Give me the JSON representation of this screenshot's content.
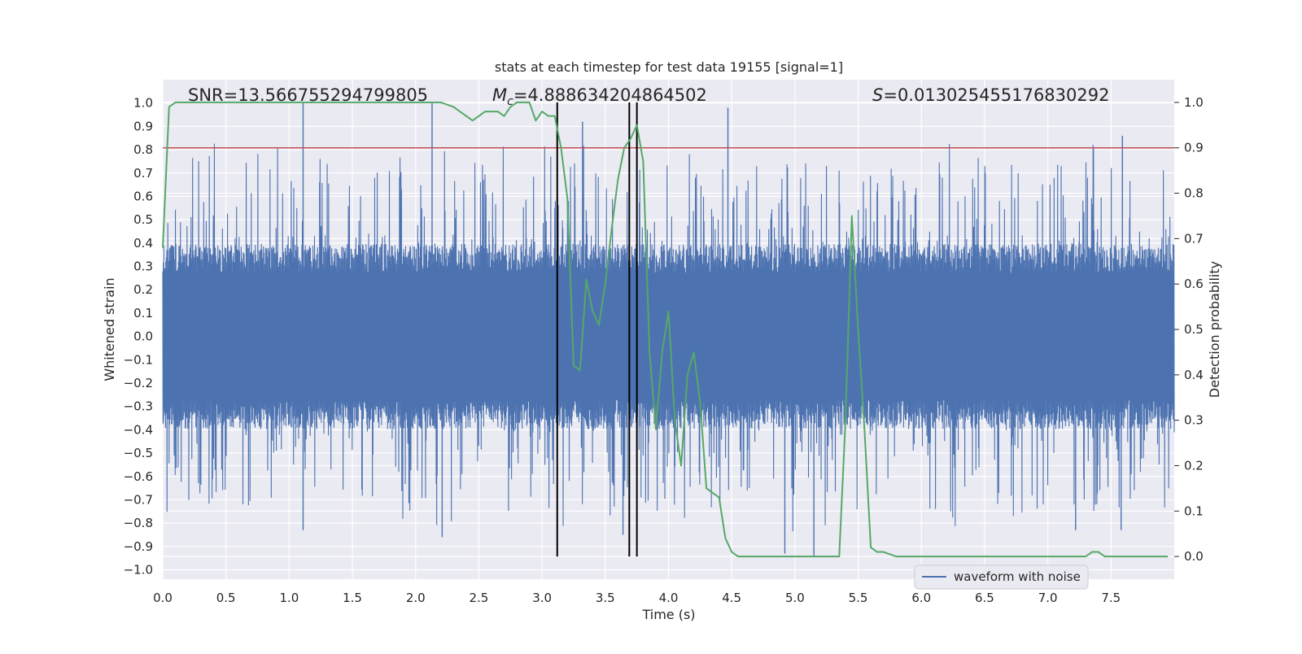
{
  "chart_data": {
    "type": "line",
    "title": "stats at each timestep for test data 19155 [signal=1]",
    "xlabel": "Time (s)",
    "ylabel_left": "Whitened strain",
    "ylabel_right": "Detection probability",
    "xlim": [
      0.0,
      8.0
    ],
    "ylim_left": [
      -1.04,
      1.1
    ],
    "ylim_right": [
      -0.05,
      1.05
    ],
    "x_ticks": [
      0.0,
      0.5,
      1.0,
      1.5,
      2.0,
      2.5,
      3.0,
      3.5,
      4.0,
      4.5,
      5.0,
      5.5,
      6.0,
      6.5,
      7.0,
      7.5
    ],
    "x_tick_labels": [
      "0.0",
      "0.5",
      "1.0",
      "1.5",
      "2.0",
      "2.5",
      "3.0",
      "3.5",
      "4.0",
      "4.5",
      "5.0",
      "5.5",
      "6.0",
      "6.5",
      "7.0",
      "7.5"
    ],
    "y_left_ticks": [
      1.0,
      0.9,
      0.8,
      0.7,
      0.6,
      0.5,
      0.4,
      0.3,
      0.2,
      0.1,
      0.0,
      -0.1,
      -0.2,
      -0.3,
      -0.4,
      -0.5,
      -0.6,
      -0.7,
      -0.8,
      -0.9,
      -1.0
    ],
    "y_left_tick_labels": [
      "1.0",
      "0.9",
      "0.8",
      "0.7",
      "0.6",
      "0.5",
      "0.4",
      "0.3",
      "0.2",
      "0.1",
      "0.0",
      "−0.1",
      "−0.2",
      "−0.3",
      "−0.4",
      "−0.5",
      "−0.6",
      "−0.7",
      "−0.8",
      "−0.9",
      "−1.0"
    ],
    "y_right_ticks": [
      1.0,
      0.9,
      0.8,
      0.7,
      0.6,
      0.5,
      0.4,
      0.3,
      0.2,
      0.1,
      0.0
    ],
    "y_right_tick_labels": [
      "1.0",
      "0.9",
      "0.8",
      "0.7",
      "0.6",
      "0.5",
      "0.4",
      "0.3",
      "0.2",
      "0.1",
      "0.0"
    ],
    "grid": true,
    "annotations": {
      "snr": "SNR=13.566755294799805",
      "mc_symbol": "M",
      "mc_subscript": "c",
      "mc_value": "=4.888634204864502",
      "s_symbol": "S",
      "s_value": "=0.013025455176830292"
    },
    "legend": {
      "placement": "lower-right",
      "entries": [
        {
          "name": "waveform with noise",
          "color": "#4c72b0"
        }
      ]
    },
    "threshold_line": {
      "axis": "right",
      "value": 0.9,
      "color": "#c44e52"
    },
    "vertical_lines": {
      "x": [
        3.12,
        3.69,
        3.75
      ],
      "y_top_right": 1.0,
      "y_bottom_right": 0.0,
      "color": "#000000"
    },
    "waveform": {
      "name": "waveform with noise",
      "color": "#4c72b0",
      "x_range": [
        0.0,
        8.0
      ],
      "points": 4000,
      "core_amplitude": 0.36,
      "sample_peaks": [
        {
          "x": 1.11,
          "y": 1.0
        },
        {
          "x": 2.13,
          "y": 1.0
        },
        {
          "x": 4.47,
          "y": 0.98
        },
        {
          "x": 3.32,
          "y": 0.92
        },
        {
          "x": 7.59,
          "y": 0.86
        },
        {
          "x": 4.92,
          "y": -0.93
        },
        {
          "x": 5.15,
          "y": -0.94
        },
        {
          "x": 1.11,
          "y": -0.83
        },
        {
          "x": 2.21,
          "y": -0.86
        },
        {
          "x": 3.64,
          "y": -0.85
        },
        {
          "x": 7.22,
          "y": -0.83
        },
        {
          "x": 7.58,
          "y": -0.83
        }
      ]
    },
    "detection_probability": {
      "name": "Detection probability",
      "color": "#55a868",
      "x": [
        0.0,
        0.05,
        0.1,
        0.15,
        0.2,
        0.3,
        0.5,
        0.7,
        0.9,
        1.1,
        1.3,
        1.5,
        1.7,
        1.9,
        2.1,
        2.2,
        2.3,
        2.35,
        2.45,
        2.5,
        2.55,
        2.6,
        2.65,
        2.7,
        2.75,
        2.8,
        2.85,
        2.9,
        2.95,
        3.0,
        3.05,
        3.1,
        3.15,
        3.2,
        3.25,
        3.3,
        3.35,
        3.4,
        3.45,
        3.5,
        3.55,
        3.6,
        3.65,
        3.7,
        3.75,
        3.8,
        3.85,
        3.9,
        3.95,
        4.0,
        4.05,
        4.1,
        4.15,
        4.2,
        4.25,
        4.3,
        4.35,
        4.4,
        4.45,
        4.5,
        4.55,
        4.6,
        4.65,
        4.7,
        4.75,
        4.8,
        4.9,
        5.0,
        5.1,
        5.2,
        5.3,
        5.35,
        5.4,
        5.45,
        5.5,
        5.55,
        5.6,
        5.65,
        5.7,
        5.8,
        6.0,
        6.2,
        6.4,
        6.6,
        6.8,
        7.0,
        7.2,
        7.25,
        7.3,
        7.35,
        7.4,
        7.45,
        7.5,
        7.6,
        7.8,
        7.95
      ],
      "values": [
        0.68,
        0.99,
        1.0,
        1.0,
        1.0,
        1.0,
        1.0,
        1.0,
        1.0,
        1.0,
        1.0,
        1.0,
        1.0,
        1.0,
        1.0,
        1.0,
        0.99,
        0.98,
        0.96,
        0.97,
        0.98,
        0.98,
        0.98,
        0.97,
        0.99,
        1.0,
        1.0,
        1.0,
        0.96,
        0.98,
        0.97,
        0.97,
        0.9,
        0.79,
        0.42,
        0.41,
        0.61,
        0.54,
        0.51,
        0.6,
        0.72,
        0.83,
        0.9,
        0.92,
        0.95,
        0.87,
        0.45,
        0.28,
        0.45,
        0.54,
        0.3,
        0.2,
        0.4,
        0.45,
        0.34,
        0.15,
        0.14,
        0.13,
        0.04,
        0.01,
        0.0,
        0.0,
        0.0,
        0.0,
        0.0,
        0.0,
        0.0,
        0.0,
        0.0,
        0.0,
        0.0,
        0.0,
        0.3,
        0.75,
        0.5,
        0.28,
        0.02,
        0.01,
        0.01,
        0.0,
        0.0,
        0.0,
        0.0,
        0.0,
        0.0,
        0.0,
        0.0,
        0.0,
        0.0,
        0.01,
        0.01,
        0.0,
        0.0,
        0.0,
        0.0,
        0.0
      ]
    }
  }
}
